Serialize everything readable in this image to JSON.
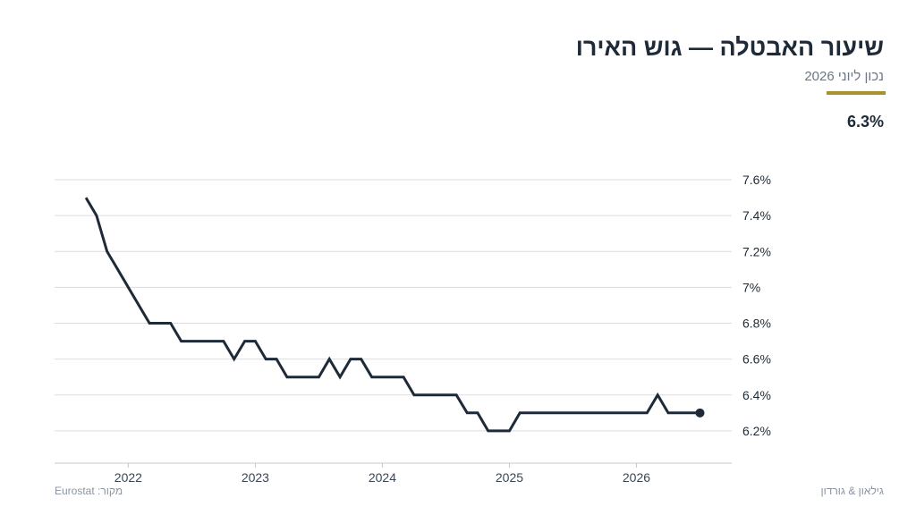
{
  "header": {
    "title": "שיעור האבטלה — גוש האירו",
    "subtitle": "נכון ליוני 2026",
    "headline_value": "6.3%"
  },
  "footer": {
    "source": "מקור: Eurostat",
    "brand": "גילאון & גורדון"
  },
  "colors": {
    "line": "#1e2a38",
    "accent": "#a8922f",
    "grid": "#d9dde2"
  },
  "chart_data": {
    "type": "line",
    "title": "שיעור האבטלה — גוש האירו",
    "xlabel": "",
    "ylabel": "",
    "x_ticks": [
      {
        "value": 2022,
        "label": "2022"
      },
      {
        "value": 2023,
        "label": "2023"
      },
      {
        "value": 2024,
        "label": "2024"
      },
      {
        "value": 2025,
        "label": "2025"
      },
      {
        "value": 2026,
        "label": "2026"
      }
    ],
    "y_ticks": [
      {
        "value": 6.2,
        "label": "6.2%"
      },
      {
        "value": 6.4,
        "label": "6.4%"
      },
      {
        "value": 6.6,
        "label": "6.6%"
      },
      {
        "value": 6.8,
        "label": "6.8%"
      },
      {
        "value": 7.0,
        "label": "7%"
      },
      {
        "value": 7.2,
        "label": "7.2%"
      },
      {
        "value": 7.4,
        "label": "7.4%"
      },
      {
        "value": 7.6,
        "label": "7.6%"
      }
    ],
    "xlim": [
      2021.42,
      2026.75
    ],
    "ylim": [
      6.02,
      7.6
    ],
    "grid": "horizontal",
    "y_axis_side": "right",
    "end_marker": true,
    "series": [
      {
        "x": [
          2021.667,
          2021.75,
          2021.833,
          2021.917,
          2022.0,
          2022.083,
          2022.167,
          2022.25,
          2022.333,
          2022.417,
          2022.5,
          2022.583,
          2022.667,
          2022.75,
          2022.833,
          2022.917,
          2023.0,
          2023.083,
          2023.167,
          2023.25,
          2023.333,
          2023.417,
          2023.5,
          2023.583,
          2023.667,
          2023.75,
          2023.833,
          2023.917,
          2024.0,
          2024.083,
          2024.167,
          2024.25,
          2024.333,
          2024.417,
          2024.5,
          2024.583,
          2024.667,
          2024.75,
          2024.833,
          2024.917,
          2025.0,
          2025.083,
          2025.167,
          2025.25,
          2025.333,
          2025.417,
          2025.5,
          2025.583,
          2025.667,
          2025.75,
          2025.833,
          2025.917,
          2026.0,
          2026.083,
          2026.167,
          2026.25,
          2026.333,
          2026.417,
          2026.5
        ],
        "values": [
          7.5,
          7.4,
          7.2,
          7.1,
          7.0,
          6.9,
          6.8,
          6.8,
          6.8,
          6.7,
          6.7,
          6.7,
          6.7,
          6.7,
          6.6,
          6.7,
          6.7,
          6.6,
          6.6,
          6.5,
          6.5,
          6.5,
          6.5,
          6.6,
          6.5,
          6.6,
          6.6,
          6.5,
          6.5,
          6.5,
          6.5,
          6.4,
          6.4,
          6.4,
          6.4,
          6.4,
          6.3,
          6.3,
          6.2,
          6.2,
          6.2,
          6.3,
          6.3,
          6.3,
          6.3,
          6.3,
          6.3,
          6.3,
          6.3,
          6.3,
          6.3,
          6.3,
          6.3,
          6.3,
          6.4,
          6.3,
          6.3,
          6.3,
          6.3
        ]
      }
    ]
  }
}
